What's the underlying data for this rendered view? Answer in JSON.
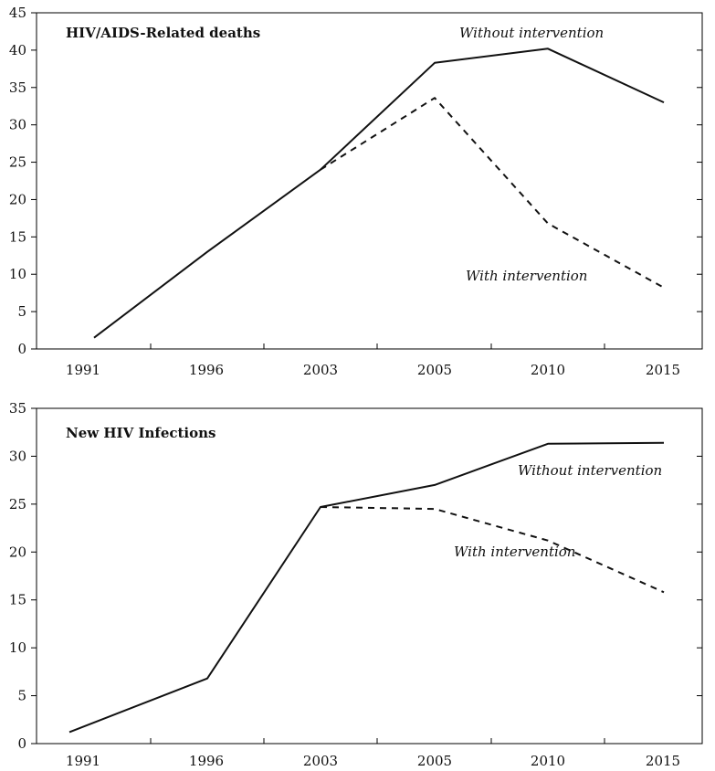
{
  "chart_data": [
    {
      "type": "line",
      "title": "HIV/AIDS-Related deaths",
      "categories": [
        "1991",
        "1996",
        "2003",
        "2005",
        "2010",
        "2015"
      ],
      "ylim": [
        0,
        45
      ],
      "yticks": [
        0,
        5,
        10,
        15,
        20,
        25,
        30,
        35,
        40,
        45
      ],
      "grid": false,
      "series": [
        {
          "name": "Without intervention",
          "style": "solid",
          "values": [
            1.5,
            13,
            24,
            38.3,
            40.2,
            33
          ]
        },
        {
          "name": "With intervention",
          "style": "dashed",
          "values": [
            null,
            null,
            24,
            33.6,
            16.8,
            8.2
          ]
        }
      ]
    },
    {
      "type": "line",
      "title": "New HIV Infections",
      "categories": [
        "1991",
        "1996",
        "2003",
        "2005",
        "2010",
        "2015"
      ],
      "ylim": [
        0,
        35
      ],
      "yticks": [
        0,
        5,
        10,
        15,
        20,
        25,
        30,
        35
      ],
      "grid": false,
      "series": [
        {
          "name": "Without intervention",
          "style": "solid",
          "values": [
            1.2,
            6.8,
            24.7,
            27,
            31.3,
            31.4
          ]
        },
        {
          "name": "With intervention",
          "style": "dashed",
          "values": [
            null,
            null,
            24.7,
            24.5,
            21.2,
            15.8
          ]
        }
      ]
    }
  ]
}
